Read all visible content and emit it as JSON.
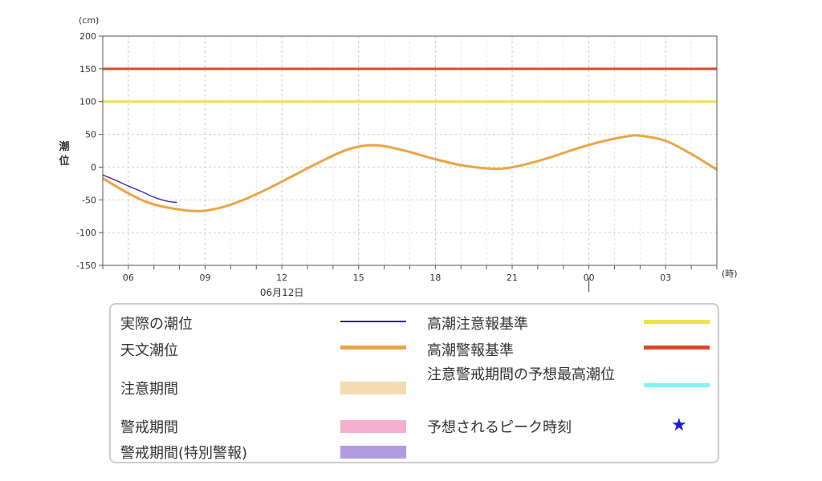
{
  "chart_data": {
    "type": "line",
    "y_unit": "(cm)",
    "ylabel": "潮位",
    "x_unit": "(時)",
    "date_label": "06月12日",
    "ylim": [
      -150,
      200
    ],
    "yticks": [
      -150,
      -100,
      -50,
      0,
      50,
      100,
      150,
      200
    ],
    "x_range_hours": [
      5,
      29
    ],
    "xticks": [
      {
        "label": "06",
        "hour": 6
      },
      {
        "label": "09",
        "hour": 9
      },
      {
        "label": "12",
        "hour": 12
      },
      {
        "label": "15",
        "hour": 15
      },
      {
        "label": "18",
        "hour": 18
      },
      {
        "label": "21",
        "hour": 21
      },
      {
        "label": "00",
        "hour": 24
      },
      {
        "label": "03",
        "hour": 27
      }
    ],
    "grid": true,
    "thresholds": [
      {
        "name": "高潮警報基準",
        "value": 150,
        "color": "#d94a2b"
      },
      {
        "name": "高潮注意報基準",
        "value": 100,
        "color": "#ece34a"
      }
    ],
    "series": [
      {
        "name": "天文潮位",
        "color": "#eba444",
        "points": [
          [
            5.0,
            -17
          ],
          [
            6.0,
            -40
          ],
          [
            7.0,
            -57
          ],
          [
            8.5,
            -67
          ],
          [
            9.5,
            -63
          ],
          [
            10.5,
            -50
          ],
          [
            11.5,
            -32
          ],
          [
            12.5,
            -12
          ],
          [
            13.5,
            8
          ],
          [
            14.5,
            26
          ],
          [
            15.3,
            33
          ],
          [
            16.0,
            32
          ],
          [
            17.0,
            23
          ],
          [
            18.0,
            12
          ],
          [
            19.0,
            3
          ],
          [
            20.0,
            -2
          ],
          [
            20.7,
            -2
          ],
          [
            21.5,
            4
          ],
          [
            22.5,
            15
          ],
          [
            23.5,
            28
          ],
          [
            24.5,
            39
          ],
          [
            25.5,
            47
          ],
          [
            26.0,
            48
          ],
          [
            27.0,
            40
          ],
          [
            28.0,
            20
          ],
          [
            29.0,
            -4
          ]
        ]
      },
      {
        "name": "実際の潮位",
        "color": "#3b1aa8",
        "points": [
          [
            5.0,
            -12
          ],
          [
            5.5,
            -20
          ],
          [
            6.0,
            -29
          ],
          [
            6.5,
            -37
          ],
          [
            7.0,
            -46
          ],
          [
            7.5,
            -52
          ],
          [
            7.9,
            -54
          ]
        ]
      }
    ]
  },
  "legend": {
    "items": [
      {
        "label": "実際の潮位",
        "kind": "line",
        "color": "#3b1aa8"
      },
      {
        "label": "高潮注意報基準",
        "kind": "line",
        "color": "#ece34a"
      },
      {
        "label": "天文潮位",
        "kind": "line",
        "color": "#eba444"
      },
      {
        "label": "高潮警報基準",
        "kind": "line",
        "color": "#d94a2b"
      },
      {
        "label": "注意期間",
        "kind": "fill",
        "color": "#f6dbb2"
      },
      {
        "label": "注意警戒期間の予想最高潮位",
        "kind": "line",
        "color": "#7ff4f4"
      },
      {
        "label": "警戒期間",
        "kind": "fill",
        "color": "#f4b0cc"
      },
      {
        "label": "予想されるピーク時刻",
        "kind": "star",
        "color": "#1a1adc",
        "symbol": "★"
      },
      {
        "label": "警戒期間(特別警報)",
        "kind": "fill",
        "color": "#b39be0"
      }
    ]
  }
}
